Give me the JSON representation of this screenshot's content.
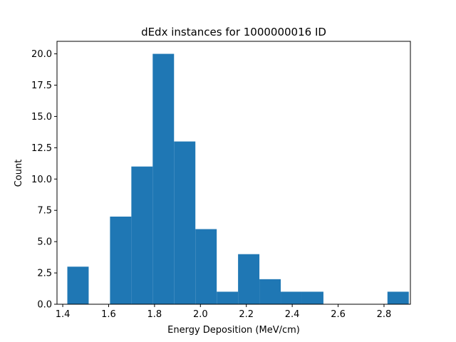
{
  "chart_data": {
    "type": "bar",
    "title": "dEdx instances for 1000000016 ID",
    "xlabel": "Energy Deposition (MeV/cm)",
    "ylabel": "Count",
    "xlim": [
      1.375,
      2.915
    ],
    "ylim": [
      0,
      21
    ],
    "bin_edges": [
      1.42,
      1.513,
      1.606,
      1.699,
      1.792,
      1.885,
      1.978,
      2.071,
      2.164,
      2.257,
      2.35,
      2.443,
      2.536,
      2.629,
      2.722,
      2.815,
      2.908
    ],
    "counts": [
      3,
      0,
      7,
      11,
      20,
      13,
      6,
      1,
      4,
      2,
      1,
      1,
      0,
      0,
      0,
      1
    ],
    "bar_color": "#1f77b4",
    "x_ticks": [
      1.4,
      1.6,
      1.8,
      2.0,
      2.2,
      2.4,
      2.6,
      2.8
    ],
    "x_tick_labels": [
      "1.4",
      "1.6",
      "1.8",
      "2.0",
      "2.2",
      "2.4",
      "2.6",
      "2.8"
    ],
    "y_ticks": [
      0,
      2.5,
      5,
      7.5,
      10,
      12.5,
      15,
      17.5,
      20
    ],
    "y_tick_labels": [
      "0.0",
      "2.5",
      "5.0",
      "7.5",
      "10.0",
      "12.5",
      "15.0",
      "17.5",
      "20.0"
    ],
    "grid": false,
    "legend": "none"
  }
}
